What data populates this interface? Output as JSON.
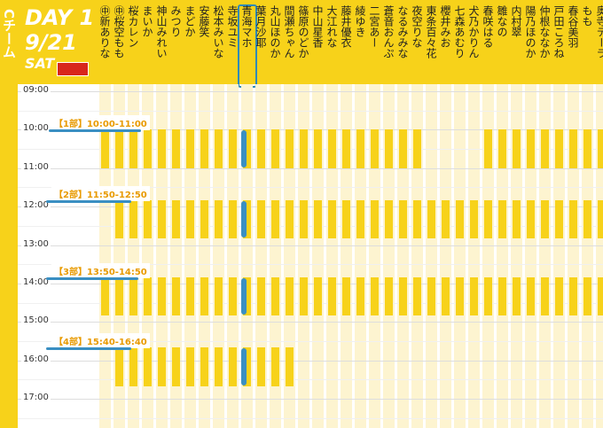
{
  "team": "Cチーム",
  "day": "DAY 1",
  "date": "9/21",
  "weekday": "SAT",
  "members": [
    "㊥新ありな",
    "㊥桜空もも",
    "桜カレン",
    "まいか",
    "神山みれい",
    "みつり",
    "まどか",
    "安藤笑",
    "松本みいな",
    "寺坂ユミ",
    "青海マホ",
    "葉月沙耶",
    "丸山ほのか",
    "間瀬ちゃん",
    "篠原のどか",
    "中山星香",
    "大江れな",
    "藤井優衣",
    "綾ゆき",
    "二宮あー",
    "蒼音おんぷ",
    "なるみみな",
    "夜空りな",
    "東条百々花",
    "櫻井みお",
    "七森あむり",
    "犬乃かりん",
    "春咲はる",
    "雛なの",
    "内村翠",
    "陽乃ほのか",
    "仲根ななか",
    "戸田ころね",
    "春谷美羽",
    "もも",
    "奥寺テーラ"
  ],
  "times": [
    "09:00",
    "10:00",
    "11:00",
    "12:00",
    "13:00",
    "14:00",
    "15:00",
    "16:00",
    "17:00"
  ],
  "sessions": [
    "【1部】10:00-11:00",
    "【2部】11:50-12:50",
    "【3部】13:50-14:50",
    "【4部】15:40-16:40"
  ]
}
